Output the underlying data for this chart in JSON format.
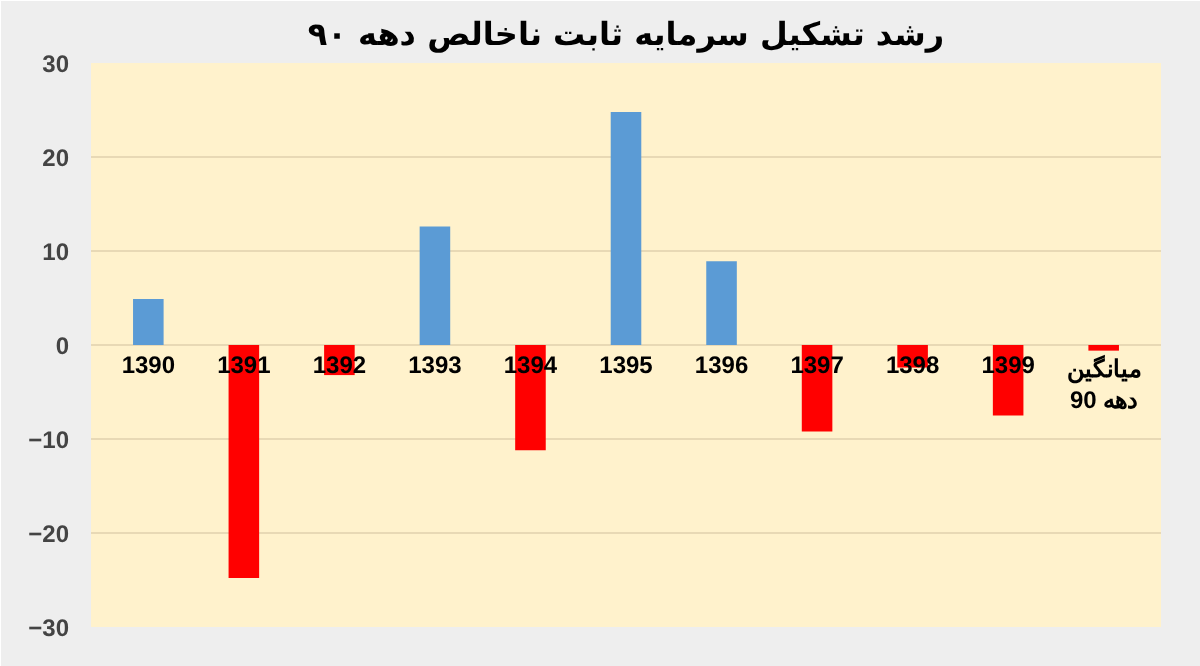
{
  "chart_data": {
    "type": "bar",
    "title": "رشد تشکیل سرمایه ثابت ناخالص دهه ۹۰",
    "categories": [
      "1390",
      "1391",
      "1392",
      "1393",
      "1394",
      "1395",
      "1396",
      "1397",
      "1398",
      "1399",
      "میانگین دهه 90"
    ],
    "values": [
      4.9,
      -24.8,
      -3.2,
      12.6,
      -11.2,
      24.8,
      8.9,
      -9.2,
      -2.4,
      -7.5,
      -0.6
    ],
    "colors": [
      "#5b9bd5",
      "#ff0000",
      "#ff0000",
      "#5b9bd5",
      "#ff0000",
      "#5b9bd5",
      "#5b9bd5",
      "#ff0000",
      "#ff0000",
      "#ff0000",
      "#ff0000"
    ],
    "ylim": [
      -30,
      30
    ],
    "yticks": [
      -30,
      -20,
      -10,
      0,
      10,
      20,
      30
    ],
    "grid": "y"
  }
}
